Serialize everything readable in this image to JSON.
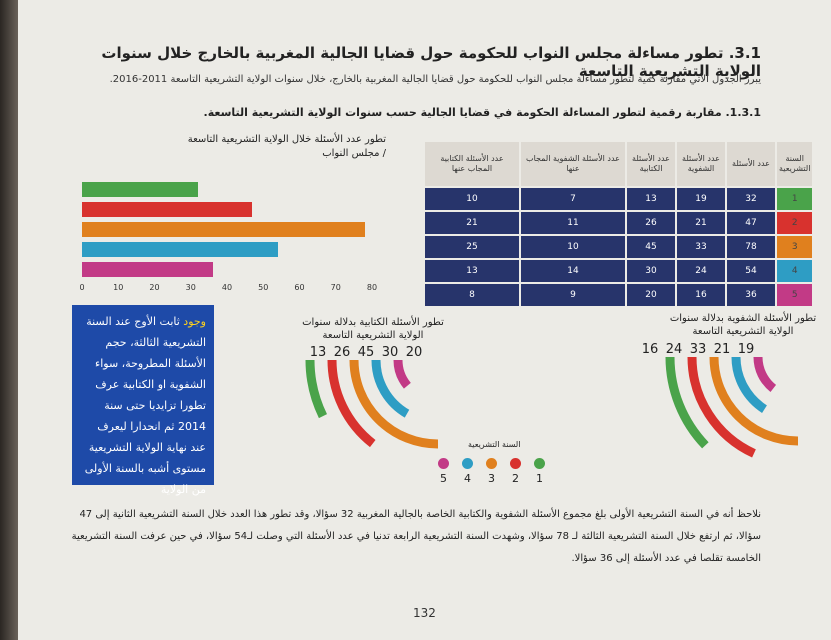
{
  "heading": "3.1. تطور مساءلة مجلس النواب للحكومة حول قضايا الجالية المغربية بالخارج خلال سنوات الولاية التشريعية التاسعة",
  "intro": "يبرز الجدول الآتي مقارنة كمية لتطور مساءلة مجلس النواب للحكومة حول قضايا الجالية المغربية بالخارج، خلال سنوات الولاية التشريعية التاسعة 2011-2016.",
  "subheading": "1.3.1. مقاربة رقمية لتطور المساءلة الحكومة في قضايا الجالية حسب سنوات الولاية التشريعية التاسعة.",
  "bar_chart_title": "تطور عدد الأسئلة خلال الولاية التشريعية التاسعة / مجلس النواب",
  "table": {
    "headers": [
      "السنة التشريعية",
      "عدد الأسئلة",
      "عدد الأسئلة الشفوية",
      "عدد الأسئلة الكتابية",
      "عدد الأسئلة الشفوية المجاب عنها",
      "عدد الأسئلة الكتابية المجاب عنها"
    ],
    "rows": [
      {
        "year": "1",
        "total": "32",
        "oral": "19",
        "written": "13",
        "oral_answered": "7",
        "written_answered": "10"
      },
      {
        "year": "2",
        "total": "47",
        "oral": "21",
        "written": "26",
        "oral_answered": "11",
        "written_answered": "21"
      },
      {
        "year": "3",
        "total": "78",
        "oral": "33",
        "written": "45",
        "oral_answered": "10",
        "written_answered": "25"
      },
      {
        "year": "4",
        "total": "54",
        "oral": "24",
        "written": "30",
        "oral_answered": "14",
        "written_answered": "13"
      },
      {
        "year": "5",
        "total": "36",
        "oral": "16",
        "written": "20",
        "oral_answered": "9",
        "written_answered": "8"
      }
    ]
  },
  "year_colors": [
    "#4aa34a",
    "#d8322e",
    "#e0801e",
    "#2e9dc4",
    "#c23a86"
  ],
  "bluebox": {
    "highlight": "وجود",
    "text": "ثابت الأوج عند السنة التشريعية الثالثة، حجم الأسئلة المطروحة، سواء الشفوية او الكتابية عرف تطورا تزايديا حتى سنة 2014 ثم انحدارا ليعرف عند نهاية الولاية التشريعية مستوى أشبه بالسنة الأولى من الولاية"
  },
  "written_chart": {
    "title": "تطور الأسئلة الكتابية بدلالة سنوات الولاية التشريعية التاسعة",
    "numbers": [
      "13",
      "26",
      "45",
      "30",
      "20"
    ]
  },
  "oral_chart": {
    "title": "تطور الأسئلة الشفوية بدلالة سنوات الولاية التشريعية التاسعة",
    "numbers": [
      "16",
      "24",
      "33",
      "21",
      "19"
    ]
  },
  "legend": {
    "title": "السنة التشريعية",
    "labels": [
      "5",
      "4",
      "3",
      "2",
      "1"
    ]
  },
  "conclusion": "نلاحظ أنه في السنة التشريعية الأولى بلغ مجموع الأسئلة الشفوية والكتابية الخاصة بالجالية المغربية 32 سؤالا، وقد تطور هذا العدد خلال السنة التشريعية الثانية إلى 47 سؤالا، ثم ارتفع خلال السنة التشريعية الثالثة لـ 78 سؤالا، وشهدت السنة التشريعية الرابعة تدنيا في عدد الأسئلة التي وصلت لـ54 سؤالا، في حين عرفت السنة التشريعية الخامسة تقلصا في عدد الأسئلة إلى 36 سؤالا.",
  "page_number": "132",
  "chart_data": {
    "type": "bar",
    "orientation": "horizontal",
    "categories": [
      "1",
      "2",
      "3",
      "4",
      "5"
    ],
    "values": [
      32,
      47,
      78,
      54,
      36
    ],
    "xticks": [
      "0",
      "10",
      "20",
      "30",
      "40",
      "50",
      "60",
      "70",
      "80"
    ],
    "xlim": [
      0,
      80
    ]
  }
}
